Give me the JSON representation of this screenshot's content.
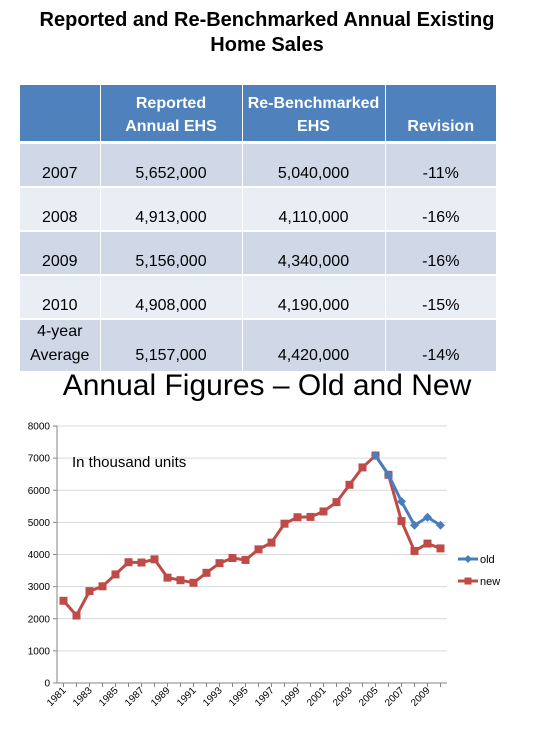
{
  "title_lines": [
    "Reported and Re-Benchmarked Annual Existing",
    "Home Sales"
  ],
  "table": {
    "headers": [
      {
        "lines": [
          "",
          ""
        ]
      },
      {
        "lines": [
          "Reported",
          "Annual EHS"
        ]
      },
      {
        "lines": [
          "Re-Benchmarked",
          "EHS"
        ]
      },
      {
        "lines": [
          "",
          "Revision"
        ]
      }
    ],
    "rows": [
      {
        "label": [
          "2007"
        ],
        "reported": "5,652,000",
        "rebenchmarked": "5,040,000",
        "revision": "-11%"
      },
      {
        "label": [
          "2008"
        ],
        "reported": "4,913,000",
        "rebenchmarked": "4,110,000",
        "revision": "-16%"
      },
      {
        "label": [
          "2009"
        ],
        "reported": "5,156,000",
        "rebenchmarked": "4,340,000",
        "revision": "-16%"
      },
      {
        "label": [
          "2010"
        ],
        "reported": "4,908,000",
        "rebenchmarked": "4,190,000",
        "revision": "-15%"
      },
      {
        "label": [
          "4-year",
          "Average"
        ],
        "reported": "5,157,000",
        "rebenchmarked": "4,420,000",
        "revision": "-14%"
      }
    ]
  },
  "colors": {
    "header": "#4f81bd",
    "row_dark": "#d0d8e8",
    "row_light": "#e9edf4",
    "old": "#4a7ebb",
    "new": "#be4b48"
  },
  "chart_data": {
    "type": "line",
    "title": "Annual Figures – Old and New",
    "annotation": "In thousand units",
    "ylim": [
      0,
      8000
    ],
    "yticks": [
      0,
      1000,
      2000,
      3000,
      4000,
      5000,
      6000,
      7000,
      8000
    ],
    "xticks": [
      "1981",
      "1983",
      "1985",
      "1987",
      "1989",
      "1991",
      "1993",
      "1995",
      "1997",
      "1999",
      "2001",
      "2003",
      "2005",
      "2007",
      "2009"
    ],
    "x": [
      1981,
      1982,
      1983,
      1984,
      1985,
      1986,
      1987,
      1988,
      1989,
      1990,
      1991,
      1992,
      1993,
      1994,
      1995,
      1996,
      1997,
      1998,
      1999,
      2000,
      2001,
      2002,
      2003,
      2004,
      2005,
      2006,
      2007,
      2008,
      2009,
      2010
    ],
    "grid": true,
    "legend": "right",
    "series": [
      {
        "name": "old",
        "color": "#4a7ebb",
        "marker": "diamond",
        "values": [
          null,
          null,
          null,
          null,
          null,
          null,
          null,
          null,
          null,
          null,
          null,
          null,
          null,
          null,
          null,
          null,
          null,
          null,
          null,
          null,
          null,
          null,
          null,
          null,
          7080,
          6480,
          5650,
          4910,
          5160,
          4910
        ]
      },
      {
        "name": "new",
        "color": "#be4b48",
        "marker": "square",
        "values": [
          2560,
          2100,
          2860,
          3010,
          3380,
          3760,
          3750,
          3850,
          3280,
          3200,
          3120,
          3430,
          3730,
          3890,
          3830,
          4160,
          4370,
          4960,
          5160,
          5170,
          5340,
          5630,
          6170,
          6710,
          7080,
          6480,
          5040,
          4110,
          4340,
          4190
        ]
      }
    ]
  }
}
